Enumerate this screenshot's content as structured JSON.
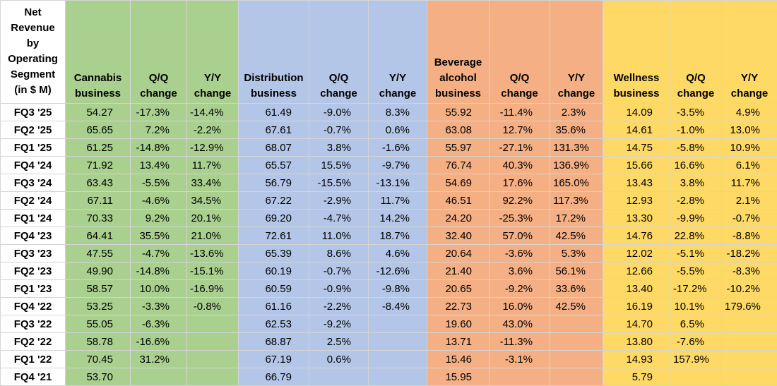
{
  "header": {
    "row_header": "Net Revenue by Operating Segment (in $ M)",
    "columns": [
      {
        "label": "Cannabis business",
        "group": "canna"
      },
      {
        "label": "Q/Q change",
        "group": "canna"
      },
      {
        "label": "Y/Y change",
        "group": "canna"
      },
      {
        "label": "Distribution business",
        "group": "dist"
      },
      {
        "label": "Q/Q change",
        "group": "dist"
      },
      {
        "label": "Y/Y change",
        "group": "dist"
      },
      {
        "label": "Beverage alcohol business",
        "group": "bev"
      },
      {
        "label": "Q/Q change",
        "group": "bev"
      },
      {
        "label": "Y/Y change",
        "group": "bev"
      },
      {
        "label": "Wellness business",
        "group": "well"
      },
      {
        "label": "Q/Q change",
        "group": "well"
      },
      {
        "label": "Y/Y change",
        "group": "well"
      }
    ]
  },
  "colors": {
    "canna": "#a9d08e",
    "dist": "#b4c6e7",
    "bev": "#f4b084",
    "well": "#ffd966"
  },
  "rows": [
    {
      "label": "FQ3 '25",
      "cells": [
        "54.27",
        "-17.3%",
        "-14.4%",
        "61.49",
        "-9.0%",
        "8.3%",
        "55.92",
        "-11.4%",
        "2.3%",
        "14.09",
        "-3.5%",
        "4.9%"
      ]
    },
    {
      "label": "FQ2 '25",
      "cells": [
        "65.65",
        "7.2%",
        "-2.2%",
        "67.61",
        "-0.7%",
        "0.6%",
        "63.08",
        "12.7%",
        "35.6%",
        "14.61",
        "-1.0%",
        "13.0%"
      ]
    },
    {
      "label": "FQ1 '25",
      "cells": [
        "61.25",
        "-14.8%",
        "-12.9%",
        "68.07",
        "3.8%",
        "-1.6%",
        "55.97",
        "-27.1%",
        "131.3%",
        "14.75",
        "-5.8%",
        "10.9%"
      ]
    },
    {
      "label": "FQ4 '24",
      "cells": [
        "71.92",
        "13.4%",
        "11.7%",
        "65.57",
        "15.5%",
        "-9.7%",
        "76.74",
        "40.3%",
        "136.9%",
        "15.66",
        "16.6%",
        "6.1%"
      ]
    },
    {
      "label": "FQ3 '24",
      "cells": [
        "63.43",
        "-5.5%",
        "33.4%",
        "56.79",
        "-15.5%",
        "-13.1%",
        "54.69",
        "17.6%",
        "165.0%",
        "13.43",
        "3.8%",
        "11.7%"
      ]
    },
    {
      "label": "FQ2 '24",
      "cells": [
        "67.11",
        "-4.6%",
        "34.5%",
        "67.22",
        "-2.9%",
        "11.7%",
        "46.51",
        "92.2%",
        "117.3%",
        "12.93",
        "-2.8%",
        "2.1%"
      ]
    },
    {
      "label": "FQ1 '24",
      "cells": [
        "70.33",
        "9.2%",
        "20.1%",
        "69.20",
        "-4.7%",
        "14.2%",
        "24.20",
        "-25.3%",
        "17.2%",
        "13.30",
        "-9.9%",
        "-0.7%"
      ]
    },
    {
      "label": "FQ4 '23",
      "cells": [
        "64.41",
        "35.5%",
        "21.0%",
        "72.61",
        "11.0%",
        "18.7%",
        "32.40",
        "57.0%",
        "42.5%",
        "14.76",
        "22.8%",
        "-8.8%"
      ]
    },
    {
      "label": "FQ3 '23",
      "cells": [
        "47.55",
        "-4.7%",
        "-13.6%",
        "65.39",
        "8.6%",
        "4.6%",
        "20.64",
        "-3.6%",
        "5.3%",
        "12.02",
        "-5.1%",
        "-18.2%"
      ]
    },
    {
      "label": "FQ2 '23",
      "cells": [
        "49.90",
        "-14.8%",
        "-15.1%",
        "60.19",
        "-0.7%",
        "-12.6%",
        "21.40",
        "3.6%",
        "56.1%",
        "12.66",
        "-5.5%",
        "-8.3%"
      ]
    },
    {
      "label": "FQ1 '23",
      "cells": [
        "58.57",
        "10.0%",
        "-16.9%",
        "60.59",
        "-0.9%",
        "-9.8%",
        "20.65",
        "-9.2%",
        "33.6%",
        "13.40",
        "-17.2%",
        "-10.2%"
      ]
    },
    {
      "label": "FQ4 '22",
      "cells": [
        "53.25",
        "-3.3%",
        "-0.8%",
        "61.16",
        "-2.2%",
        "-8.4%",
        "22.73",
        "16.0%",
        "42.5%",
        "16.19",
        "10.1%",
        "179.6%"
      ]
    },
    {
      "label": "FQ3 '22",
      "cells": [
        "55.05",
        "-6.3%",
        "",
        "62.53",
        "-9.2%",
        "",
        "19.60",
        "43.0%",
        "",
        "14.70",
        "6.5%",
        ""
      ]
    },
    {
      "label": "FQ2 '22",
      "cells": [
        "58.78",
        "-16.6%",
        "",
        "68.87",
        "2.5%",
        "",
        "13.71",
        "-11.3%",
        "",
        "13.80",
        "-7.6%",
        ""
      ]
    },
    {
      "label": "FQ1 '22",
      "cells": [
        "70.45",
        "31.2%",
        "",
        "67.19",
        "0.6%",
        "",
        "15.46",
        "-3.1%",
        "",
        "14.93",
        "157.9%",
        ""
      ]
    },
    {
      "label": "FQ4 '21",
      "cells": [
        "53.70",
        "",
        "",
        "66.79",
        "",
        "",
        "15.95",
        "",
        "",
        "5.79",
        "",
        ""
      ]
    }
  ]
}
